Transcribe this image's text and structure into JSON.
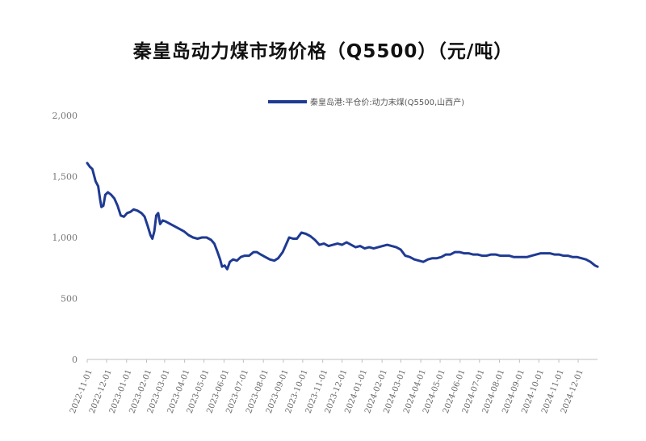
{
  "chart_data": {
    "type": "line",
    "title": "秦皇岛动力煤市场价格（Q5500）（元/吨）",
    "xlabel": "",
    "ylabel": "",
    "ylim": [
      0,
      2000
    ],
    "yticks": [
      "0",
      "500",
      "1,000",
      "1,500",
      "2,000"
    ],
    "ytick_values": [
      0,
      500,
      1000,
      1500,
      2000
    ],
    "grid": false,
    "legend_position": "top",
    "line_color": "#1f3a93",
    "x_start": "2022-11-01",
    "x_end": "2024-12-31",
    "xticks": [
      "2022-11-01",
      "2022-12-01",
      "2023-01-01",
      "2023-02-01",
      "2023-03-01",
      "2023-04-01",
      "2023-05-01",
      "2023-06-01",
      "2023-07-01",
      "2023-08-01",
      "2023-09-01",
      "2023-10-01",
      "2023-11-01",
      "2023-12-01",
      "2024-01-01",
      "2024-02-01",
      "2024-03-01",
      "2024-04-01",
      "2024-05-01",
      "2024-06-01",
      "2024-07-01",
      "2024-08-01",
      "2024-09-01",
      "2024-10-01",
      "2024-11-01",
      "2024-12-01"
    ],
    "series": [
      {
        "name": "秦皇岛港:平仓价:动力末煤(Q5500,山西产)",
        "points": [
          [
            "2022-11-01",
            1610
          ],
          [
            "2022-11-05",
            1580
          ],
          [
            "2022-11-09",
            1560
          ],
          [
            "2022-11-14",
            1460
          ],
          [
            "2022-11-18",
            1420
          ],
          [
            "2022-11-21",
            1310
          ],
          [
            "2022-11-23",
            1250
          ],
          [
            "2022-11-26",
            1260
          ],
          [
            "2022-11-29",
            1350
          ],
          [
            "2022-12-03",
            1370
          ],
          [
            "2022-12-08",
            1350
          ],
          [
            "2022-12-13",
            1320
          ],
          [
            "2022-12-18",
            1260
          ],
          [
            "2022-12-23",
            1180
          ],
          [
            "2022-12-28",
            1170
          ],
          [
            "2023-01-02",
            1200
          ],
          [
            "2023-01-07",
            1210
          ],
          [
            "2023-01-12",
            1230
          ],
          [
            "2023-01-18",
            1220
          ],
          [
            "2023-01-24",
            1200
          ],
          [
            "2023-01-29",
            1170
          ],
          [
            "2023-02-03",
            1090
          ],
          [
            "2023-02-07",
            1020
          ],
          [
            "2023-02-10",
            990
          ],
          [
            "2023-02-13",
            1050
          ],
          [
            "2023-02-16",
            1180
          ],
          [
            "2023-02-19",
            1200
          ],
          [
            "2023-02-22",
            1110
          ],
          [
            "2023-02-26",
            1140
          ],
          [
            "2023-03-03",
            1130
          ],
          [
            "2023-03-10",
            1110
          ],
          [
            "2023-03-17",
            1090
          ],
          [
            "2023-03-24",
            1070
          ],
          [
            "2023-03-31",
            1050
          ],
          [
            "2023-04-07",
            1020
          ],
          [
            "2023-04-14",
            1000
          ],
          [
            "2023-04-21",
            990
          ],
          [
            "2023-04-28",
            1000
          ],
          [
            "2023-05-05",
            1000
          ],
          [
            "2023-05-12",
            980
          ],
          [
            "2023-05-17",
            950
          ],
          [
            "2023-05-22",
            880
          ],
          [
            "2023-05-26",
            820
          ],
          [
            "2023-05-29",
            760
          ],
          [
            "2023-06-02",
            770
          ],
          [
            "2023-06-06",
            740
          ],
          [
            "2023-06-10",
            800
          ],
          [
            "2023-06-15",
            820
          ],
          [
            "2023-06-21",
            810
          ],
          [
            "2023-06-27",
            840
          ],
          [
            "2023-07-03",
            850
          ],
          [
            "2023-07-10",
            850
          ],
          [
            "2023-07-17",
            880
          ],
          [
            "2023-07-22",
            880
          ],
          [
            "2023-07-28",
            860
          ],
          [
            "2023-08-04",
            840
          ],
          [
            "2023-08-11",
            820
          ],
          [
            "2023-08-18",
            810
          ],
          [
            "2023-08-24",
            830
          ],
          [
            "2023-08-31",
            880
          ],
          [
            "2023-09-05",
            940
          ],
          [
            "2023-09-10",
            1000
          ],
          [
            "2023-09-16",
            990
          ],
          [
            "2023-09-22",
            990
          ],
          [
            "2023-09-29",
            1040
          ],
          [
            "2023-10-06",
            1030
          ],
          [
            "2023-10-13",
            1010
          ],
          [
            "2023-10-20",
            980
          ],
          [
            "2023-10-27",
            940
          ],
          [
            "2023-11-03",
            950
          ],
          [
            "2023-11-10",
            930
          ],
          [
            "2023-11-17",
            940
          ],
          [
            "2023-11-24",
            950
          ],
          [
            "2023-12-01",
            940
          ],
          [
            "2023-12-08",
            960
          ],
          [
            "2023-12-15",
            940
          ],
          [
            "2023-12-22",
            920
          ],
          [
            "2023-12-29",
            930
          ],
          [
            "2024-01-05",
            910
          ],
          [
            "2024-01-12",
            920
          ],
          [
            "2024-01-19",
            910
          ],
          [
            "2024-01-26",
            920
          ],
          [
            "2024-02-02",
            930
          ],
          [
            "2024-02-09",
            940
          ],
          [
            "2024-02-16",
            930
          ],
          [
            "2024-02-23",
            920
          ],
          [
            "2024-03-01",
            900
          ],
          [
            "2024-03-08",
            850
          ],
          [
            "2024-03-15",
            840
          ],
          [
            "2024-03-22",
            820
          ],
          [
            "2024-03-29",
            810
          ],
          [
            "2024-04-05",
            800
          ],
          [
            "2024-04-12",
            820
          ],
          [
            "2024-04-19",
            830
          ],
          [
            "2024-04-26",
            830
          ],
          [
            "2024-05-03",
            840
          ],
          [
            "2024-05-10",
            860
          ],
          [
            "2024-05-17",
            860
          ],
          [
            "2024-05-24",
            880
          ],
          [
            "2024-05-31",
            880
          ],
          [
            "2024-06-07",
            870
          ],
          [
            "2024-06-14",
            870
          ],
          [
            "2024-06-21",
            860
          ],
          [
            "2024-06-28",
            860
          ],
          [
            "2024-07-05",
            850
          ],
          [
            "2024-07-12",
            850
          ],
          [
            "2024-07-19",
            860
          ],
          [
            "2024-07-26",
            860
          ],
          [
            "2024-08-02",
            850
          ],
          [
            "2024-08-09",
            850
          ],
          [
            "2024-08-16",
            850
          ],
          [
            "2024-08-23",
            840
          ],
          [
            "2024-08-30",
            840
          ],
          [
            "2024-09-06",
            840
          ],
          [
            "2024-09-13",
            840
          ],
          [
            "2024-09-20",
            850
          ],
          [
            "2024-09-27",
            860
          ],
          [
            "2024-10-04",
            870
          ],
          [
            "2024-10-11",
            870
          ],
          [
            "2024-10-18",
            870
          ],
          [
            "2024-10-25",
            860
          ],
          [
            "2024-11-01",
            860
          ],
          [
            "2024-11-08",
            850
          ],
          [
            "2024-11-15",
            850
          ],
          [
            "2024-11-22",
            840
          ],
          [
            "2024-11-29",
            840
          ],
          [
            "2024-12-06",
            830
          ],
          [
            "2024-12-13",
            820
          ],
          [
            "2024-12-20",
            800
          ],
          [
            "2024-12-27",
            770
          ],
          [
            "2024-12-31",
            760
          ]
        ]
      }
    ]
  }
}
